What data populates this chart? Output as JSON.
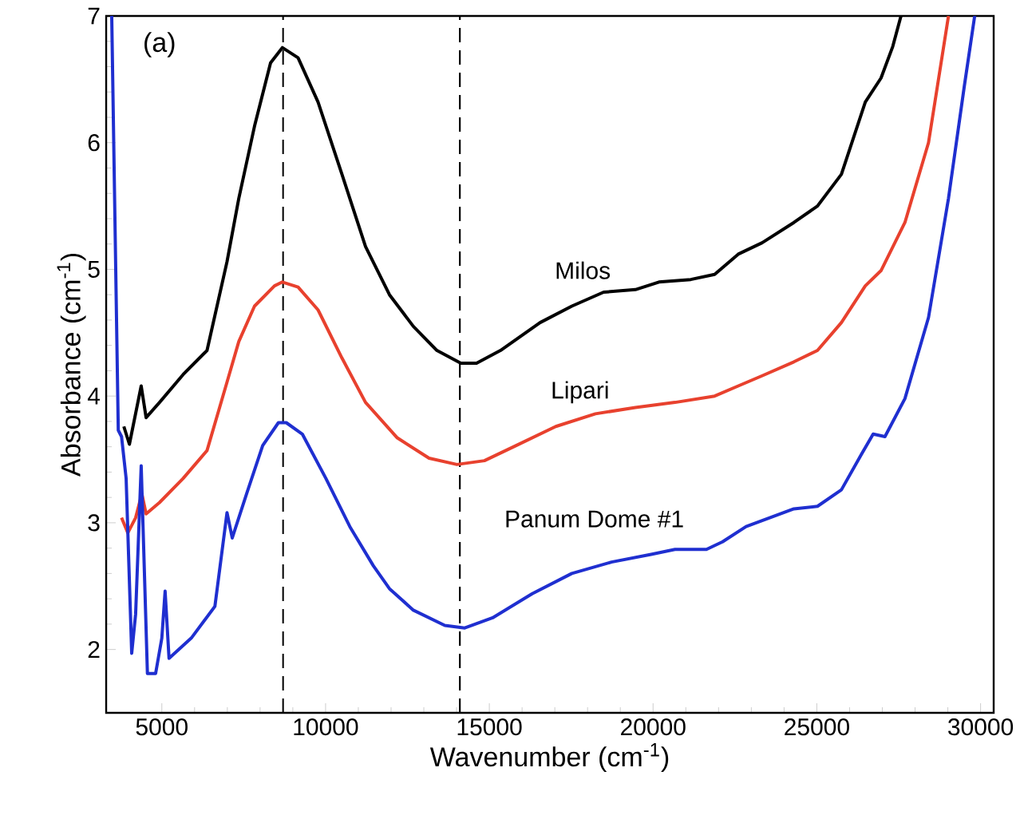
{
  "chart_data": {
    "type": "line",
    "xlabel": "Wavenumber (cm$^{-1}$)",
    "ylabel": "Absorbance (cm$^{-1}$)",
    "annotations": [
      "(a)"
    ],
    "xlim": [
      3300,
      30400
    ],
    "ylim": [
      1.5,
      7
    ],
    "xticks": [
      5000,
      10000,
      15000,
      20000,
      25000,
      30000
    ],
    "yticks": [
      2,
      3,
      4,
      5,
      6,
      7
    ],
    "grid": false,
    "legend": false,
    "marker": "none",
    "line_style": "solid",
    "ref_lines": [
      {
        "axis": "x",
        "value": 8700,
        "color": "#000000",
        "line_style": "dashed"
      },
      {
        "axis": "x",
        "value": 14100,
        "color": "#000000",
        "line_style": "dashed"
      }
    ],
    "series": [
      {
        "name": "Milos",
        "color": "#000000",
        "x": [
          3840,
          4010,
          4370,
          4520,
          4930,
          5650,
          6380,
          6990,
          7350,
          7830,
          8320,
          8680,
          9160,
          9770,
          10500,
          11220,
          11950,
          12680,
          13400,
          14130,
          14610,
          15340,
          16550,
          17520,
          18490,
          19460,
          20180,
          21150,
          21880,
          22600,
          23330,
          24300,
          25020,
          25750,
          26480,
          26960,
          27320,
          27570
        ],
        "values": [
          3.76,
          3.62,
          4.08,
          3.83,
          3.95,
          4.17,
          4.36,
          5.06,
          5.56,
          6.13,
          6.63,
          6.75,
          6.67,
          6.32,
          5.75,
          5.18,
          4.8,
          4.55,
          4.36,
          4.26,
          4.26,
          4.36,
          4.58,
          4.71,
          4.82,
          4.84,
          4.9,
          4.92,
          4.96,
          5.12,
          5.21,
          5.37,
          5.5,
          5.75,
          6.32,
          6.51,
          6.76,
          7.0
        ]
      },
      {
        "name": "Lipari",
        "color": "#e8412e",
        "x": [
          3770,
          3960,
          4200,
          4390,
          4520,
          4930,
          5650,
          6380,
          6990,
          7350,
          7830,
          8440,
          8680,
          9160,
          9770,
          10500,
          11220,
          12190,
          13160,
          14010,
          14850,
          15820,
          17030,
          18240,
          19460,
          20670,
          21880,
          22600,
          23330,
          24300,
          25020,
          25750,
          26480,
          26960,
          27690,
          28410,
          29020
        ],
        "values": [
          3.04,
          2.92,
          3.04,
          3.23,
          3.07,
          3.16,
          3.35,
          3.57,
          4.11,
          4.43,
          4.71,
          4.87,
          4.9,
          4.86,
          4.68,
          4.3,
          3.95,
          3.67,
          3.51,
          3.46,
          3.49,
          3.61,
          3.76,
          3.86,
          3.91,
          3.95,
          4.0,
          4.08,
          4.16,
          4.27,
          4.36,
          4.58,
          4.87,
          4.99,
          5.37,
          6.0,
          7.0
        ]
      },
      {
        "name": "Panum Dome #1",
        "color": "#1f2fd0",
        "x": [
          3470,
          3670,
          3770,
          3910,
          4080,
          4200,
          4370,
          4440,
          4560,
          4810,
          5000,
          5100,
          5220,
          5900,
          6620,
          6990,
          7150,
          7590,
          8080,
          8560,
          8800,
          9290,
          10010,
          10740,
          11460,
          11950,
          12680,
          13640,
          14250,
          15100,
          16310,
          17520,
          18730,
          19940,
          20670,
          21630,
          22120,
          22840,
          23570,
          24300,
          25020,
          25750,
          26360,
          26720,
          27080,
          27690,
          28410,
          29020,
          29500,
          29820
        ],
        "values": [
          7.0,
          3.73,
          3.68,
          3.35,
          1.97,
          2.28,
          3.45,
          2.85,
          1.81,
          1.81,
          2.09,
          2.46,
          1.93,
          2.09,
          2.34,
          3.08,
          2.88,
          3.23,
          3.61,
          3.79,
          3.79,
          3.7,
          3.35,
          2.97,
          2.66,
          2.48,
          2.31,
          2.19,
          2.17,
          2.25,
          2.44,
          2.6,
          2.69,
          2.75,
          2.79,
          2.79,
          2.85,
          2.97,
          3.04,
          3.11,
          3.13,
          3.26,
          3.54,
          3.7,
          3.68,
          3.98,
          4.62,
          5.56,
          6.44,
          7.0
        ]
      }
    ]
  }
}
